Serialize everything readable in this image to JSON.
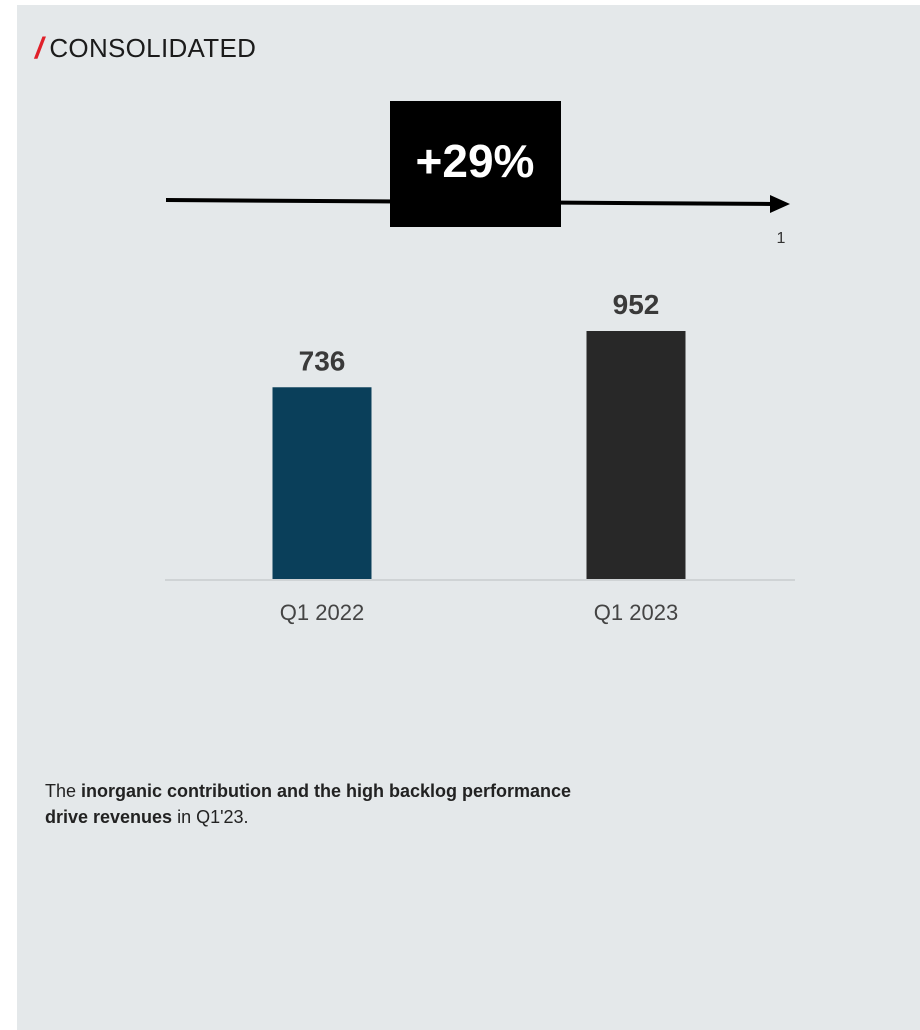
{
  "header": {
    "title": "CONSOLIDATED"
  },
  "growth": {
    "label": "+29%",
    "note": "1"
  },
  "chart_data": {
    "type": "bar",
    "categories": [
      "Q1 2022",
      "Q1 2023"
    ],
    "values": [
      736,
      952
    ],
    "value_labels": [
      "736",
      "952"
    ],
    "colors": [
      "#0a3f5a",
      "#282828"
    ],
    "ylim": [
      0,
      952
    ]
  },
  "summary": {
    "prefix": "The ",
    "bold": "inorganic contribution and the high backlog performance drive revenues",
    "suffix": " in Q1'23."
  }
}
